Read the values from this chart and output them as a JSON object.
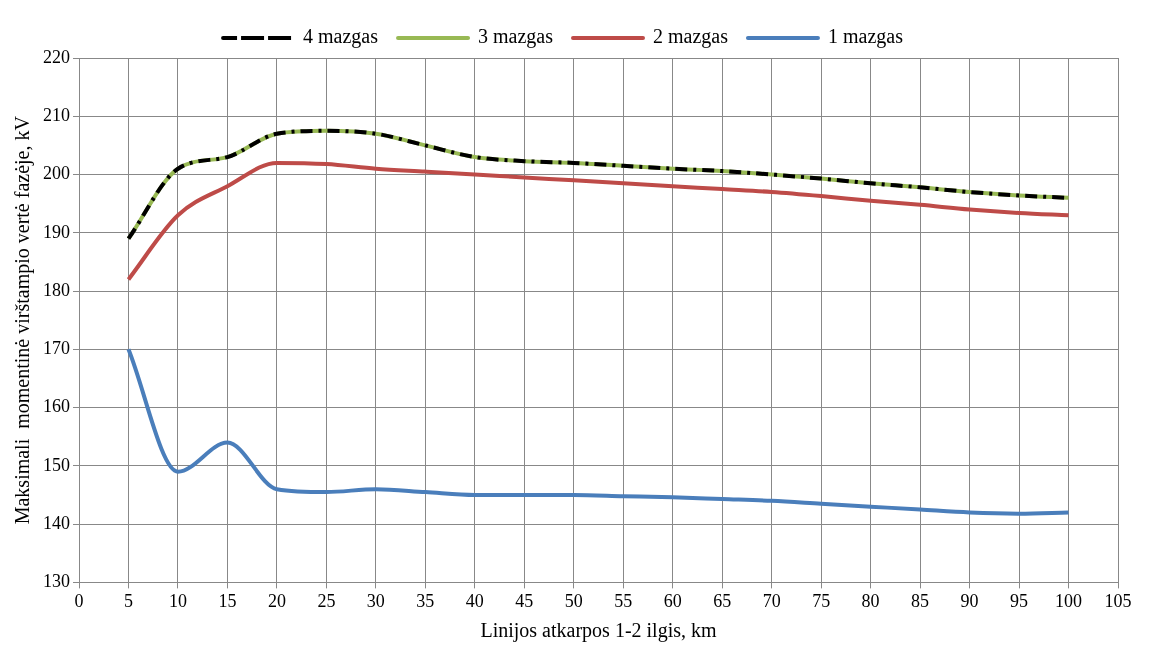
{
  "chart_data": {
    "type": "line",
    "xlabel": "Linijos atkarpos 1-2 ilgis, km",
    "ylabel": "Maksimali  momentinė virštampio vertė fazėje, kV",
    "x": [
      5,
      10,
      15,
      20,
      25,
      30,
      35,
      40,
      45,
      50,
      55,
      60,
      65,
      70,
      75,
      80,
      85,
      90,
      95,
      100
    ],
    "series": [
      {
        "name": "1 mazgas",
        "color": "#4a7ebb",
        "line_style": "solid",
        "values": [
          170,
          149,
          154,
          146,
          145.5,
          146,
          145.5,
          145,
          145,
          145,
          144.8,
          144.6,
          144.3,
          144,
          143.5,
          143,
          142.5,
          142,
          141.8,
          142
        ]
      },
      {
        "name": "2 mazgas",
        "color": "#be4b48",
        "line_style": "solid",
        "values": [
          182,
          193,
          198,
          202,
          201.8,
          201,
          200.5,
          200,
          199.5,
          199,
          198.5,
          198,
          197.5,
          197,
          196.3,
          195.5,
          194.8,
          194,
          193.4,
          193
        ]
      },
      {
        "name": "3 mazgas",
        "color": "#98b954",
        "line_style": "solid",
        "values": [
          189,
          201,
          203,
          207,
          207.5,
          207,
          205,
          203,
          202.3,
          202,
          201.5,
          201,
          200.6,
          200,
          199.3,
          198.5,
          197.8,
          197,
          196.4,
          196
        ]
      },
      {
        "name": "4 mazgas",
        "color": "#000000",
        "line_style": "dashed",
        "values": [
          189,
          201,
          203,
          207,
          207.5,
          207,
          205,
          203,
          202.3,
          202,
          201.5,
          201,
          200.6,
          200,
          199.3,
          198.5,
          197.8,
          197,
          196.4,
          196
        ]
      }
    ],
    "xlim": [
      0,
      105
    ],
    "xticks": [
      0,
      5,
      10,
      15,
      20,
      25,
      30,
      35,
      40,
      45,
      50,
      55,
      60,
      65,
      70,
      75,
      80,
      85,
      90,
      95,
      100,
      105
    ],
    "ylim": [
      130,
      220
    ],
    "yticks": [
      130,
      140,
      150,
      160,
      170,
      180,
      190,
      200,
      210,
      220
    ],
    "grid": true,
    "legend": "top",
    "marker": "none"
  }
}
